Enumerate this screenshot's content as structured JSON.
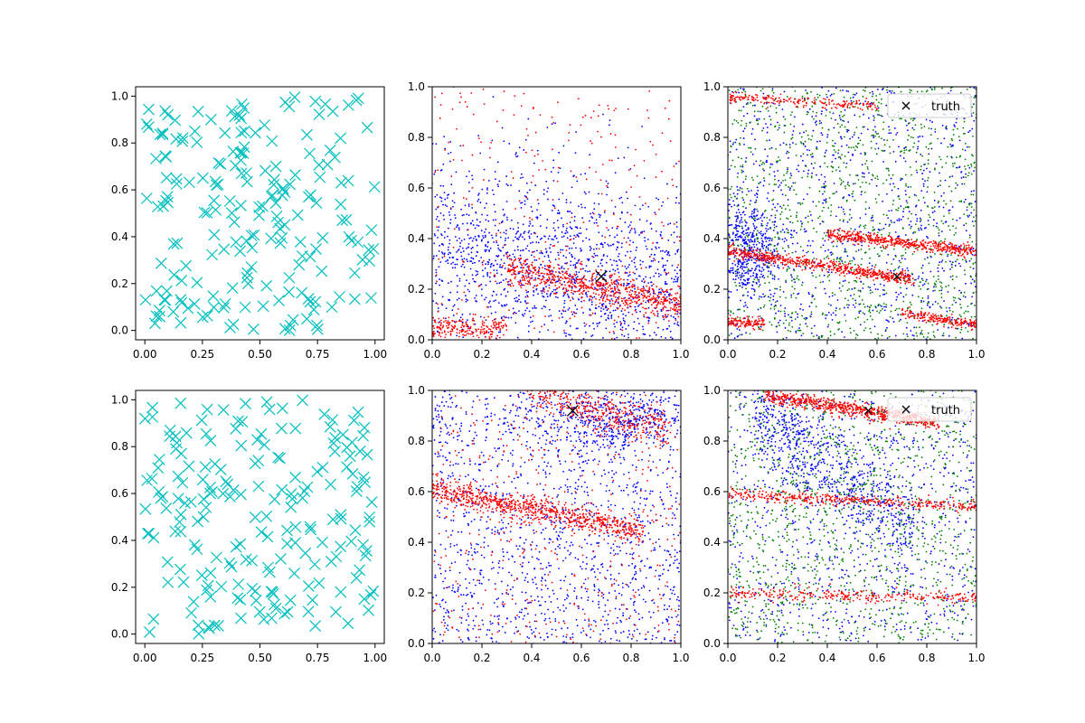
{
  "figure": {
    "background": "#ffffff"
  },
  "chart_data": [
    {
      "id": "p0",
      "type": "scatter",
      "xlim": [
        -0.04,
        1.04
      ],
      "ylim": [
        -0.04,
        1.04
      ],
      "xticks": [
        "0.00",
        "0.25",
        "0.50",
        "0.75",
        "1.00"
      ],
      "yticks": [
        "0.0",
        "0.2",
        "0.4",
        "0.6",
        "0.8",
        "1.0"
      ],
      "grid": false,
      "series": [
        {
          "marker": "x-large",
          "color": "#00bfbf",
          "count": 200,
          "distribution": "uniform",
          "seed": 11
        }
      ]
    },
    {
      "id": "p1",
      "type": "scatter",
      "xlim": [
        0,
        1
      ],
      "ylim": [
        0,
        1
      ],
      "xticks": [
        "0.0",
        "0.2",
        "0.4",
        "0.6",
        "0.8",
        "1.0"
      ],
      "yticks": [
        "0.0",
        "0.2",
        "0.4",
        "0.6",
        "0.8",
        "1.0"
      ],
      "grid": false,
      "series": [
        {
          "marker": "dot",
          "color": "#0000ff",
          "count": 1600,
          "distribution": "band-around",
          "center_y": 0.25,
          "slope": -0.2,
          "spread": 0.28,
          "seed": 21
        },
        {
          "marker": "dot",
          "color": "#ff0000",
          "count": 700,
          "distribution": "line",
          "y0": 0.34,
          "slope": -0.2,
          "spread": 0.03,
          "xrange": [
            0.3,
            1.0
          ],
          "seed": 22
        },
        {
          "marker": "dot",
          "color": "#ff0000",
          "count": 200,
          "distribution": "line",
          "y0": 0.05,
          "slope": -0.05,
          "spread": 0.02,
          "xrange": [
            0.0,
            0.3
          ],
          "seed": 23
        },
        {
          "marker": "dot",
          "color": "#ff0000",
          "count": 300,
          "distribution": "uniform",
          "seed": 24
        }
      ],
      "truth": {
        "x": 0.68,
        "y": 0.25,
        "marker": "x-large",
        "color": "#000000"
      }
    },
    {
      "id": "p2",
      "type": "scatter",
      "xlim": [
        0,
        1
      ],
      "ylim": [
        0,
        1
      ],
      "xticks": [
        "0.0",
        "0.2",
        "0.4",
        "0.6",
        "0.8",
        "1.0"
      ],
      "yticks": [
        "0.0",
        "0.2",
        "0.4",
        "0.6",
        "0.8",
        "1.0"
      ],
      "grid": false,
      "series": [
        {
          "marker": "dot",
          "color": "#0000ff",
          "count": 1000,
          "distribution": "uniform",
          "seed": 31
        },
        {
          "marker": "dot",
          "color": "#0000ff",
          "count": 500,
          "distribution": "blob",
          "cx": 0.08,
          "cy": 0.35,
          "sx": 0.06,
          "sy": 0.1,
          "seed": 32
        },
        {
          "marker": "dot",
          "color": "#008000",
          "count": 1200,
          "distribution": "uniform",
          "seed": 33
        },
        {
          "marker": "dot",
          "color": "#ff0000",
          "count": 600,
          "distribution": "line",
          "y0": 0.35,
          "slope": -0.15,
          "spread": 0.012,
          "xrange": [
            0.0,
            0.75
          ],
          "seed": 34
        },
        {
          "marker": "dot",
          "color": "#ff0000",
          "count": 500,
          "distribution": "line",
          "y0": 0.46,
          "slope": -0.11,
          "spread": 0.012,
          "xrange": [
            0.4,
            1.0
          ],
          "seed": 35
        },
        {
          "marker": "dot",
          "color": "#ff0000",
          "count": 200,
          "distribution": "line",
          "y0": 0.96,
          "slope": -0.06,
          "spread": 0.01,
          "xrange": [
            0.0,
            0.6
          ],
          "seed": 36
        },
        {
          "marker": "dot",
          "color": "#ff0000",
          "count": 200,
          "distribution": "line",
          "y0": 0.21,
          "slope": -0.15,
          "spread": 0.01,
          "xrange": [
            0.7,
            1.0
          ],
          "seed": 37
        },
        {
          "marker": "dot",
          "color": "#ff0000",
          "count": 120,
          "distribution": "line",
          "y0": 0.07,
          "slope": -0.02,
          "spread": 0.01,
          "xrange": [
            0.0,
            0.15
          ],
          "seed": 38
        }
      ],
      "truth": {
        "x": 0.68,
        "y": 0.25,
        "marker": "x-small",
        "color": "#000000"
      },
      "legend": {
        "label": "truth",
        "location": "upper right"
      }
    },
    {
      "id": "p3",
      "type": "scatter",
      "xlim": [
        -0.04,
        1.04
      ],
      "ylim": [
        -0.04,
        1.04
      ],
      "xticks": [
        "0.00",
        "0.25",
        "0.50",
        "0.75",
        "1.00"
      ],
      "yticks": [
        "0.0",
        "0.2",
        "0.4",
        "0.6",
        "0.8",
        "1.0"
      ],
      "grid": false,
      "series": [
        {
          "marker": "x-large",
          "color": "#00bfbf",
          "count": 200,
          "distribution": "uniform",
          "seed": 41
        }
      ]
    },
    {
      "id": "p4",
      "type": "scatter",
      "xlim": [
        0,
        1
      ],
      "ylim": [
        0,
        1
      ],
      "xticks": [
        "0.0",
        "0.2",
        "0.4",
        "0.6",
        "0.8",
        "1.0"
      ],
      "yticks": [
        "0.0",
        "0.2",
        "0.4",
        "0.6",
        "0.8",
        "1.0"
      ],
      "grid": false,
      "series": [
        {
          "marker": "dot",
          "color": "#0000ff",
          "count": 1500,
          "distribution": "uniform",
          "seed": 51
        },
        {
          "marker": "dot",
          "color": "#0000ff",
          "count": 400,
          "distribution": "blob",
          "cx": 0.75,
          "cy": 0.88,
          "sx": 0.15,
          "sy": 0.06,
          "seed": 52
        },
        {
          "marker": "dot",
          "color": "#ff0000",
          "count": 800,
          "distribution": "line",
          "y0": 0.61,
          "slope": -0.2,
          "spread": 0.025,
          "xrange": [
            0.0,
            0.85
          ],
          "seed": 53
        },
        {
          "marker": "dot",
          "color": "#ff0000",
          "count": 400,
          "distribution": "line",
          "y0": 1.12,
          "slope": -0.3,
          "spread": 0.04,
          "xrange": [
            0.4,
            0.95
          ],
          "seed": 54
        },
        {
          "marker": "dot",
          "color": "#ff0000",
          "count": 400,
          "distribution": "uniform",
          "seed": 55
        }
      ],
      "truth": {
        "x": 0.565,
        "y": 0.92,
        "marker": "x-large",
        "color": "#000000"
      }
    },
    {
      "id": "p5",
      "type": "scatter",
      "xlim": [
        0,
        1
      ],
      "ylim": [
        0,
        1
      ],
      "xticks": [
        "0.0",
        "0.2",
        "0.4",
        "0.6",
        "0.8",
        "1.0"
      ],
      "yticks": [
        "0.0",
        "0.2",
        "0.4",
        "0.6",
        "0.8",
        "1.0"
      ],
      "grid": false,
      "series": [
        {
          "marker": "dot",
          "color": "#0000ff",
          "count": 900,
          "distribution": "uniform",
          "seed": 61
        },
        {
          "marker": "dot",
          "color": "#0000ff",
          "count": 700,
          "distribution": "line",
          "y0": 1.0,
          "slope": -0.75,
          "spread": 0.1,
          "xrange": [
            0.1,
            0.75
          ],
          "seed": 62
        },
        {
          "marker": "dot",
          "color": "#008000",
          "count": 1200,
          "distribution": "uniform",
          "seed": 63
        },
        {
          "marker": "dot",
          "color": "#ff0000",
          "count": 700,
          "distribution": "line",
          "y0": 1.0,
          "slope": -0.15,
          "spread": 0.015,
          "xrange": [
            0.15,
            0.85
          ],
          "seed": 64
        },
        {
          "marker": "dot",
          "color": "#ff0000",
          "count": 400,
          "distribution": "line",
          "y0": 0.59,
          "slope": -0.05,
          "spread": 0.012,
          "xrange": [
            0.0,
            1.0
          ],
          "seed": 65
        },
        {
          "marker": "dot",
          "color": "#ff0000",
          "count": 300,
          "distribution": "line",
          "y0": 0.2,
          "slope": -0.02,
          "spread": 0.012,
          "xrange": [
            0.0,
            1.0
          ],
          "seed": 66
        }
      ],
      "truth": {
        "x": 0.565,
        "y": 0.92,
        "marker": "x-small",
        "color": "#000000"
      },
      "legend": {
        "label": "truth",
        "location": "upper right"
      }
    }
  ]
}
